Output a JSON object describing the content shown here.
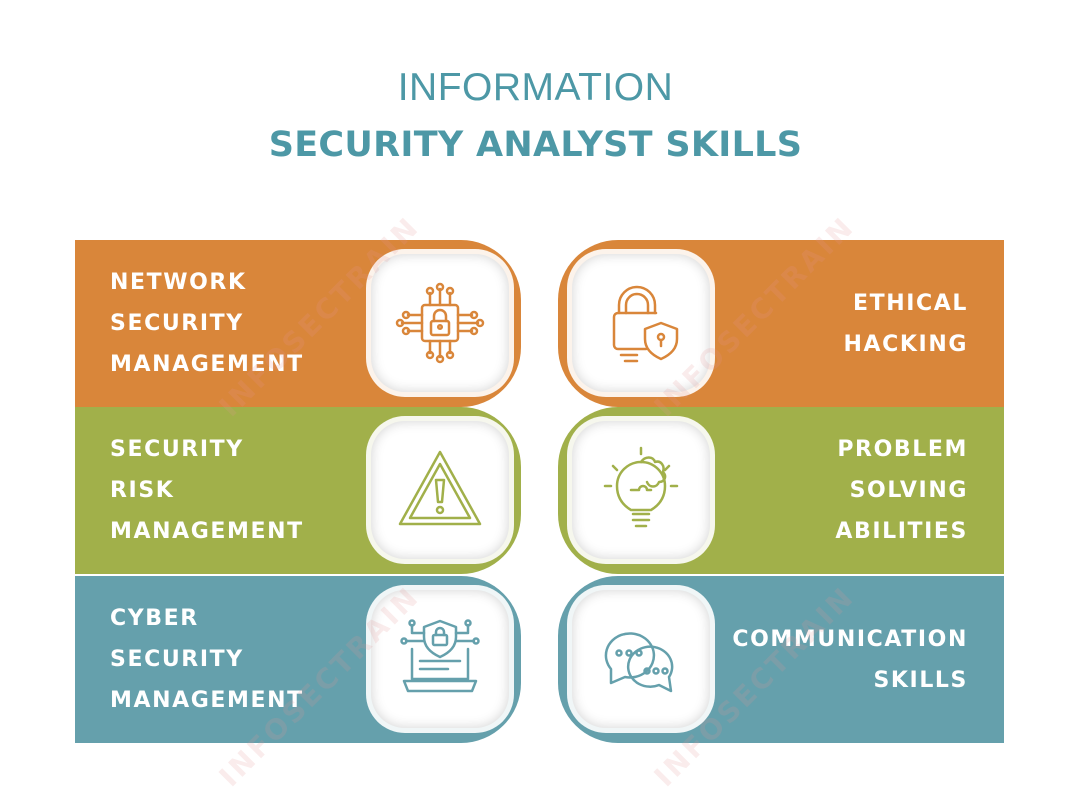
{
  "header": {
    "line1": "INFORMATION",
    "line2": "SECURITY ANALYST SKILLS"
  },
  "colors": {
    "title": "#4d98a6",
    "orange": "#d9863a",
    "green": "#a1b04a",
    "teal": "#65a0ac"
  },
  "watermark": "INFOSECTRAIN",
  "cards": [
    {
      "lines": [
        "NETWORK",
        "SECURITY",
        "MANAGEMENT"
      ],
      "icon": "circuit-lock-icon"
    },
    {
      "lines": [
        "ETHICAL",
        "HACKING"
      ],
      "icon": "padlock-shield-icon"
    },
    {
      "lines": [
        "SECURITY",
        "RISK",
        "MANAGEMENT"
      ],
      "icon": "warning-triangle-icon"
    },
    {
      "lines": [
        "PROBLEM",
        "SOLVING",
        "ABILITIES"
      ],
      "icon": "puzzle-bulb-icon"
    },
    {
      "lines": [
        "CYBER",
        "SECURITY",
        "MANAGEMENT"
      ],
      "icon": "laptop-shield-icon"
    },
    {
      "lines": [
        "COMMUNICATION",
        "SKILLS"
      ],
      "icon": "chat-bubbles-icon"
    }
  ]
}
